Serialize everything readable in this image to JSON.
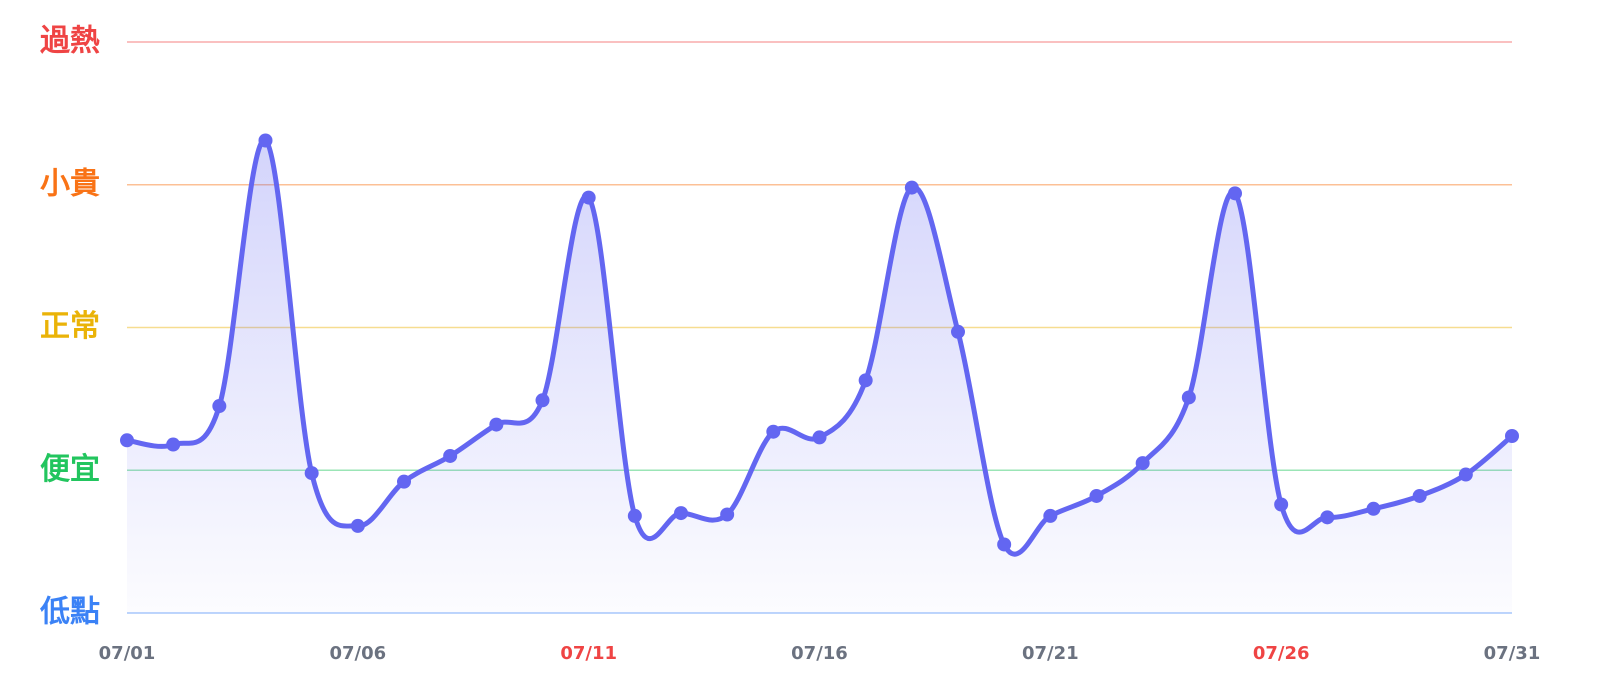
{
  "chart_data": {
    "type": "line",
    "categories": [
      "07/01",
      null,
      null,
      null,
      null,
      "07/06",
      null,
      null,
      null,
      null,
      "07/11",
      null,
      null,
      null,
      null,
      "07/16",
      null,
      null,
      null,
      null,
      "07/21",
      null,
      null,
      null,
      null,
      "07/26",
      null,
      null,
      null,
      null,
      "07/31"
    ],
    "category_colors": [
      "#6b7280",
      null,
      null,
      null,
      null,
      "#6b7280",
      null,
      null,
      null,
      null,
      "#ef4444",
      null,
      null,
      null,
      null,
      "#6b7280",
      null,
      null,
      null,
      null,
      "#6b7280",
      null,
      null,
      null,
      null,
      "#ef4444",
      null,
      null,
      null,
      null,
      "#6b7280"
    ],
    "values": [
      1.21,
      1.18,
      1.45,
      3.31,
      0.98,
      0.61,
      0.92,
      1.1,
      1.32,
      1.49,
      2.91,
      0.68,
      0.7,
      0.69,
      1.27,
      1.23,
      1.63,
      2.98,
      1.97,
      0.48,
      0.68,
      0.82,
      1.05,
      1.51,
      2.94,
      0.76,
      0.67,
      0.73,
      0.82,
      0.97,
      1.24
    ],
    "color": "#6366f1",
    "ylim": [
      0,
      4
    ],
    "yticks": [
      {
        "value": 0,
        "label": "低點"
      },
      {
        "value": 1,
        "label": "便宜"
      },
      {
        "value": 2,
        "label": "正常"
      },
      {
        "value": 3,
        "label": "小貴"
      },
      {
        "value": 4,
        "label": "過熱"
      }
    ],
    "ytick_colors": [
      "#3b82f6",
      "#22c55e",
      "#eab308",
      "#f97316",
      "#ef4444"
    ],
    "grid": true
  }
}
